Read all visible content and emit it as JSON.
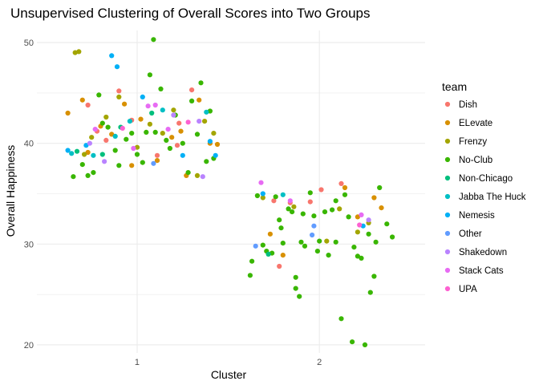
{
  "chart_data": {
    "type": "scatter",
    "title": "Unsupervised Clustering of Overall Scores into Two Groups",
    "xlabel": "Cluster",
    "ylabel": "Overall Happiness",
    "x_ticks": [
      "1",
      "2"
    ],
    "y_ticks": [
      20,
      30,
      40,
      50
    ],
    "xlim": [
      0.45,
      2.58
    ],
    "ylim": [
      19.2,
      51.2
    ],
    "grid": true,
    "legend_title": "team",
    "legend_position": "right",
    "series": [
      {
        "name": "Dish",
        "color": "#F8766D",
        "points": [
          [
            0.78,
            41.2
          ],
          [
            0.83,
            40.3
          ],
          [
            0.9,
            45.2
          ],
          [
            0.97,
            42.3
          ],
          [
            1.23,
            42.0
          ],
          [
            1.3,
            45.3
          ],
          [
            1.22,
            39.8
          ],
          [
            1.11,
            38.8
          ],
          [
            0.73,
            43.8
          ],
          [
            1.75,
            34.3
          ],
          [
            1.78,
            27.8
          ],
          [
            1.95,
            34.2
          ],
          [
            2.01,
            35.4
          ],
          [
            2.12,
            36.0
          ],
          [
            1.84,
            34.1
          ]
        ]
      },
      {
        "name": "ELevate",
        "color": "#D89000",
        "points": [
          [
            0.62,
            43.0
          ],
          [
            0.7,
            44.3
          ],
          [
            0.73,
            39.1
          ],
          [
            0.8,
            41.7
          ],
          [
            0.86,
            40.9
          ],
          [
            0.93,
            43.9
          ],
          [
            0.97,
            37.8
          ],
          [
            1.02,
            42.4
          ],
          [
            1.11,
            38.3
          ],
          [
            1.19,
            40.6
          ],
          [
            1.24,
            41.2
          ],
          [
            1.27,
            36.8
          ],
          [
            1.34,
            44.3
          ],
          [
            1.4,
            40.0
          ],
          [
            1.44,
            39.9
          ],
          [
            1.73,
            31.0
          ],
          [
            1.8,
            28.9
          ],
          [
            2.14,
            35.6
          ],
          [
            2.3,
            34.6
          ],
          [
            2.34,
            33.6
          ],
          [
            2.21,
            32.7
          ]
        ]
      },
      {
        "name": "Frenzy",
        "color": "#A3A500",
        "points": [
          [
            0.66,
            49.0
          ],
          [
            0.68,
            49.1
          ],
          [
            0.71,
            38.9
          ],
          [
            0.75,
            40.6
          ],
          [
            0.83,
            42.6
          ],
          [
            0.9,
            44.6
          ],
          [
            1.0,
            39.6
          ],
          [
            1.07,
            41.9
          ],
          [
            1.14,
            41.0
          ],
          [
            1.2,
            43.3
          ],
          [
            1.33,
            36.8
          ],
          [
            1.37,
            42.2
          ],
          [
            1.42,
            41.0
          ],
          [
            1.69,
            34.6
          ],
          [
            1.86,
            33.7
          ],
          [
            2.04,
            30.3
          ],
          [
            2.11,
            33.5
          ],
          [
            2.21,
            31.2
          ],
          [
            2.27,
            32.1
          ]
        ]
      },
      {
        "name": "No-Club",
        "color": "#39B600",
        "points": [
          [
            0.65,
            36.7
          ],
          [
            0.7,
            37.9
          ],
          [
            0.73,
            36.8
          ],
          [
            0.76,
            37.1
          ],
          [
            0.79,
            44.8
          ],
          [
            0.81,
            42.0
          ],
          [
            0.84,
            41.6
          ],
          [
            0.88,
            39.3
          ],
          [
            0.9,
            37.8
          ],
          [
            0.94,
            40.4
          ],
          [
            0.97,
            41.0
          ],
          [
            1.0,
            38.9
          ],
          [
            1.03,
            38.1
          ],
          [
            1.05,
            41.1
          ],
          [
            1.07,
            46.8
          ],
          [
            1.09,
            50.3
          ],
          [
            1.1,
            41.1
          ],
          [
            1.13,
            45.4
          ],
          [
            1.16,
            40.3
          ],
          [
            1.18,
            39.5
          ],
          [
            1.21,
            42.8
          ],
          [
            1.25,
            40.0
          ],
          [
            1.28,
            37.1
          ],
          [
            1.3,
            44.2
          ],
          [
            1.33,
            40.9
          ],
          [
            1.35,
            46.0
          ],
          [
            1.38,
            38.2
          ],
          [
            1.4,
            43.2
          ],
          [
            1.42,
            38.5
          ],
          [
            1.62,
            26.9
          ],
          [
            1.63,
            28.3
          ],
          [
            1.66,
            34.8
          ],
          [
            1.69,
            29.9
          ],
          [
            1.71,
            29.3
          ],
          [
            1.74,
            29.1
          ],
          [
            1.76,
            34.7
          ],
          [
            1.78,
            32.4
          ],
          [
            1.8,
            30.1
          ],
          [
            1.83,
            33.5
          ],
          [
            1.85,
            33.2
          ],
          [
            1.87,
            26.7
          ],
          [
            1.87,
            25.6
          ],
          [
            1.89,
            24.8
          ],
          [
            1.9,
            30.2
          ],
          [
            1.92,
            29.8
          ],
          [
            1.95,
            35.1
          ],
          [
            1.97,
            32.8
          ],
          [
            2.0,
            30.3
          ],
          [
            2.03,
            33.2
          ],
          [
            2.05,
            28.9
          ],
          [
            2.07,
            33.4
          ],
          [
            2.09,
            34.3
          ],
          [
            2.12,
            22.6
          ],
          [
            2.14,
            34.9
          ],
          [
            2.16,
            32.7
          ],
          [
            2.18,
            20.3
          ],
          [
            2.21,
            28.8
          ],
          [
            2.23,
            28.6
          ],
          [
            2.25,
            20.0
          ],
          [
            2.27,
            31.0
          ],
          [
            2.28,
            25.2
          ],
          [
            2.3,
            26.8
          ],
          [
            2.31,
            30.2
          ],
          [
            2.33,
            35.6
          ],
          [
            2.37,
            32.0
          ],
          [
            2.4,
            30.7
          ],
          [
            2.19,
            29.7
          ],
          [
            2.09,
            30.2
          ],
          [
            1.99,
            29.3
          ],
          [
            1.91,
            33.0
          ],
          [
            1.79,
            31.6
          ]
        ]
      },
      {
        "name": "Non-Chicago",
        "color": "#00BF7D",
        "points": [
          [
            0.67,
            39.2
          ],
          [
            0.81,
            38.9
          ],
          [
            0.91,
            41.6
          ],
          [
            1.08,
            43.0
          ],
          [
            1.72,
            29.0
          ]
        ]
      },
      {
        "name": "Jabba The Huck",
        "color": "#00BFC4",
        "points": [
          [
            0.64,
            39.0
          ],
          [
            0.76,
            38.8
          ],
          [
            0.88,
            40.7
          ],
          [
            0.96,
            42.2
          ],
          [
            1.14,
            43.3
          ],
          [
            1.38,
            43.1
          ],
          [
            1.8,
            34.9
          ]
        ]
      },
      {
        "name": "Nemesis",
        "color": "#00B0F6",
        "points": [
          [
            0.62,
            39.3
          ],
          [
            0.72,
            39.8
          ],
          [
            0.86,
            48.7
          ],
          [
            0.89,
            47.6
          ],
          [
            1.03,
            44.6
          ],
          [
            1.25,
            38.8
          ],
          [
            1.4,
            40.2
          ],
          [
            1.43,
            38.8
          ],
          [
            1.69,
            35.0
          ],
          [
            2.24,
            31.8
          ]
        ]
      },
      {
        "name": "Other",
        "color": "#619CFF",
        "points": [
          [
            1.09,
            38.0
          ],
          [
            1.65,
            29.8
          ],
          [
            1.97,
            31.8
          ],
          [
            1.96,
            30.9
          ]
        ]
      },
      {
        "name": "Shakedown",
        "color": "#B983FF",
        "points": [
          [
            0.74,
            40.0
          ],
          [
            0.82,
            38.2
          ],
          [
            1.2,
            42.8
          ],
          [
            1.34,
            42.2
          ],
          [
            1.36,
            36.7
          ],
          [
            2.27,
            32.4
          ]
        ]
      },
      {
        "name": "Stack Cats",
        "color": "#E76BF3",
        "points": [
          [
            0.77,
            41.4
          ],
          [
            0.98,
            39.5
          ],
          [
            1.06,
            43.7
          ],
          [
            1.1,
            43.8
          ],
          [
            1.17,
            41.4
          ],
          [
            1.68,
            36.1
          ],
          [
            1.84,
            34.3
          ],
          [
            2.23,
            32.9
          ]
        ]
      },
      {
        "name": "UPA",
        "color": "#FD61D1",
        "points": [
          [
            0.92,
            41.5
          ],
          [
            1.28,
            42.1
          ],
          [
            2.22,
            31.9
          ]
        ]
      }
    ]
  }
}
